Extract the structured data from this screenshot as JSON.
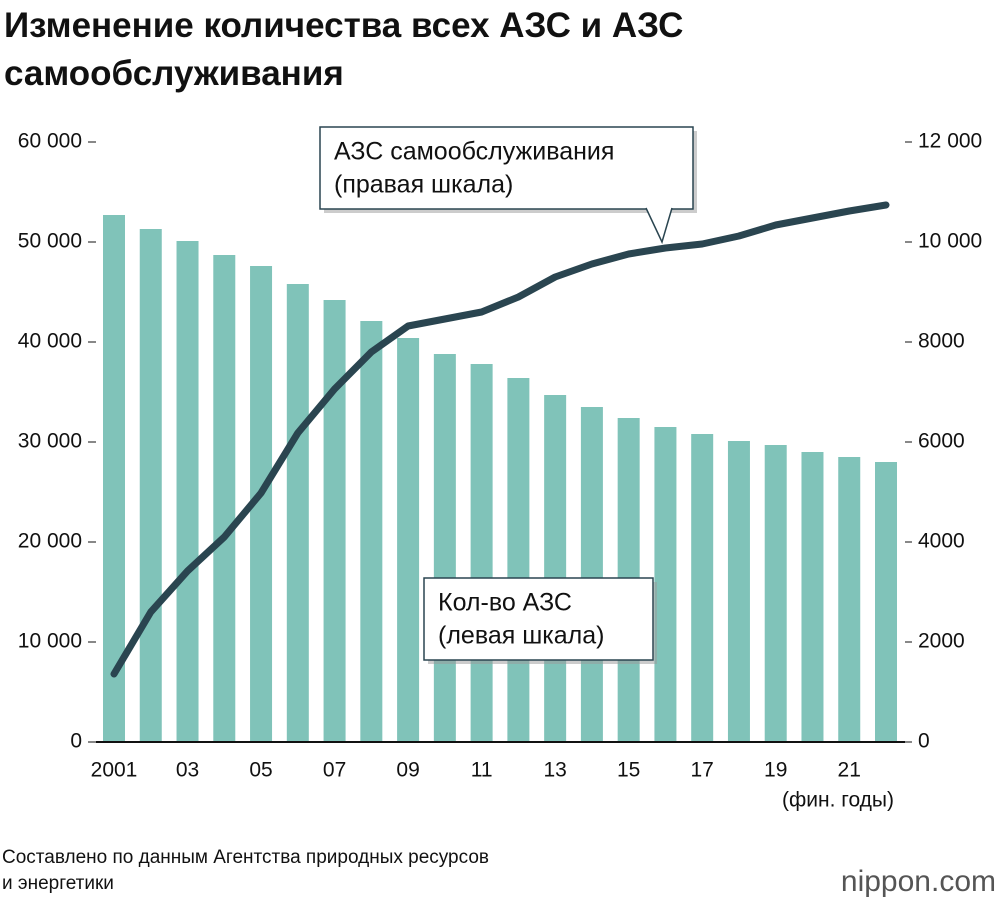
{
  "chart_data": {
    "type": "bar_line",
    "title": "Изменение количества всех АЗС и АЗС самообслуживания",
    "categories": [
      "2001",
      null,
      "03",
      null,
      "05",
      null,
      "07",
      null,
      "09",
      null,
      "11",
      null,
      "13",
      null,
      "15",
      null,
      "17",
      null,
      "19",
      null,
      "21",
      null
    ],
    "x_label": "(фин. годы)",
    "series": [
      {
        "name": "Кол-во АЗС",
        "color": "#80c3b9",
        "axis": "y",
        "values": [
          52700,
          51300,
          50100,
          48700,
          47600,
          45800,
          44200,
          42100,
          40400,
          38800,
          37800,
          36400,
          34700,
          33500,
          32400,
          31500,
          30800,
          30100,
          29700,
          29000,
          28500,
          28000
        ]
      },
      {
        "name": "АЗС самообслуживания",
        "color": "#2a4550",
        "axis": "y2",
        "values": [
          1360,
          2600,
          3420,
          4100,
          4980,
          6180,
          7060,
          7800,
          8320,
          8460,
          8600,
          8900,
          9300,
          9560,
          9760,
          9880,
          9960,
          10120,
          10340,
          10480,
          10620,
          10740
        ]
      }
    ],
    "ylim": [
      0,
      60000
    ],
    "yticks": [
      0,
      {
        "value": 10000,
        "label": "10 000"
      },
      {
        "value": 20000,
        "label": "20 000"
      },
      {
        "value": 30000,
        "label": "30 000"
      },
      {
        "value": 40000,
        "label": "40 000"
      },
      {
        "value": 50000,
        "label": "50 000"
      },
      {
        "value": 60000,
        "label": "60 000"
      }
    ],
    "y2lim": [
      0,
      12000
    ],
    "y2ticks": [
      0,
      2000,
      4000,
      6000,
      8000,
      {
        "value": 10000,
        "label": "10 000"
      },
      {
        "value": 12000,
        "label": "12 000"
      }
    ],
    "annotations": [
      {
        "lines": [
          "АЗС самообслуживания",
          "(правая шкала)"
        ],
        "series": 1
      },
      {
        "lines": [
          "Кол-во АЗС",
          "(левая шкала)"
        ],
        "series": 0
      }
    ],
    "source": [
      "Составлено по данным Агентства природных ресурсов",
      "и энергетики"
    ],
    "brand": "nippon.com"
  }
}
